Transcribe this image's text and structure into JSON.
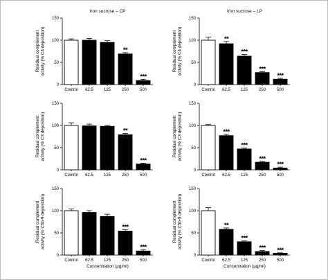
{
  "chart_data": [
    {
      "type": "bar",
      "title": "Iron sucrose – CP",
      "ylabel": [
        "Residual complement",
        "activity (% C4 deposition)"
      ],
      "xlabel": "",
      "categories": [
        "Control",
        "62.5",
        "125",
        "250",
        "500"
      ],
      "values": [
        100,
        100,
        95,
        69,
        9
      ],
      "errors": [
        3,
        4,
        4,
        3,
        3
      ],
      "significance": [
        "",
        "",
        "",
        "**",
        "***"
      ],
      "ylim": [
        0,
        150
      ],
      "yticks": [
        "0",
        "50",
        "100",
        "150"
      ],
      "bar_colors": [
        "#ffffff",
        "#000000",
        "#000000",
        "#000000",
        "#000000"
      ]
    },
    {
      "type": "bar",
      "title": "Iron sucrose – LP",
      "ylabel": [
        "Residual complement",
        "activity (% C4 deposition)"
      ],
      "xlabel": "",
      "categories": [
        "Control",
        "62.5",
        "125",
        "250",
        "500"
      ],
      "values": [
        100,
        92,
        64,
        27,
        12
      ],
      "errors": [
        7,
        5,
        4,
        2,
        2
      ],
      "significance": [
        "",
        "**",
        "***",
        "***",
        "***"
      ],
      "ylim": [
        0,
        150
      ],
      "yticks": [
        "0",
        "50",
        "100",
        "150"
      ],
      "bar_colors": [
        "#ffffff",
        "#000000",
        "#000000",
        "#000000",
        "#000000"
      ]
    },
    {
      "type": "bar",
      "title": "",
      "ylabel": [
        "Residual complement",
        "activity (% C3 deposition)"
      ],
      "xlabel": "",
      "categories": [
        "Control",
        "62.5",
        "125",
        "250",
        "500"
      ],
      "values": [
        100,
        99,
        98,
        79,
        13
      ],
      "errors": [
        6,
        4,
        2,
        3,
        2
      ],
      "significance": [
        "",
        "",
        "",
        "**",
        "***"
      ],
      "ylim": [
        0,
        150
      ],
      "yticks": [
        "0",
        "50",
        "100",
        "150"
      ],
      "bar_colors": [
        "#ffffff",
        "#000000",
        "#000000",
        "#000000",
        "#000000"
      ]
    },
    {
      "type": "bar",
      "title": "",
      "ylabel": [
        "Residual complement",
        "activity (% C3 deposition)"
      ],
      "xlabel": "",
      "categories": [
        "Control",
        "62.5",
        "125",
        "250",
        "500"
      ],
      "values": [
        100,
        77,
        47,
        17,
        4
      ],
      "errors": [
        2,
        3,
        2,
        2,
        2
      ],
      "significance": [
        "",
        "***",
        "***",
        "***",
        "***"
      ],
      "ylim": [
        0,
        150
      ],
      "yticks": [
        "0",
        "50",
        "100",
        "150"
      ],
      "bar_colors": [
        "#ffffff",
        "#000000",
        "#000000",
        "#000000",
        "#000000"
      ]
    },
    {
      "type": "bar",
      "title": "",
      "ylabel": [
        "Residual complement",
        "activity (% C5b-9 deposition)"
      ],
      "xlabel": "Concentration (µg/ml)",
      "categories": [
        "Control",
        "62.5",
        "125",
        "250",
        "500"
      ],
      "values": [
        100,
        96,
        87,
        54,
        9
      ],
      "errors": [
        4,
        4,
        5,
        3,
        3
      ],
      "significance": [
        "",
        "",
        "",
        "***",
        "***"
      ],
      "ylim": [
        0,
        150
      ],
      "yticks": [
        "0",
        "50",
        "100",
        "150"
      ],
      "bar_colors": [
        "#ffffff",
        "#000000",
        "#000000",
        "#000000",
        "#000000"
      ]
    },
    {
      "type": "bar",
      "title": "",
      "ylabel": [
        "Residual complement",
        "activity (% C5b-9 deposition)"
      ],
      "xlabel": "Concentration (µg/ml)",
      "categories": [
        "Control",
        "62.5",
        "125",
        "250",
        "500"
      ],
      "values": [
        100,
        58,
        30,
        8,
        4
      ],
      "errors": [
        7,
        3,
        2,
        2,
        1
      ],
      "significance": [
        "",
        "**",
        "***",
        "***",
        "***"
      ],
      "ylim": [
        0,
        150
      ],
      "yticks": [
        "0",
        "50",
        "100",
        "150"
      ],
      "bar_colors": [
        "#ffffff",
        "#000000",
        "#000000",
        "#000000",
        "#000000"
      ]
    }
  ]
}
